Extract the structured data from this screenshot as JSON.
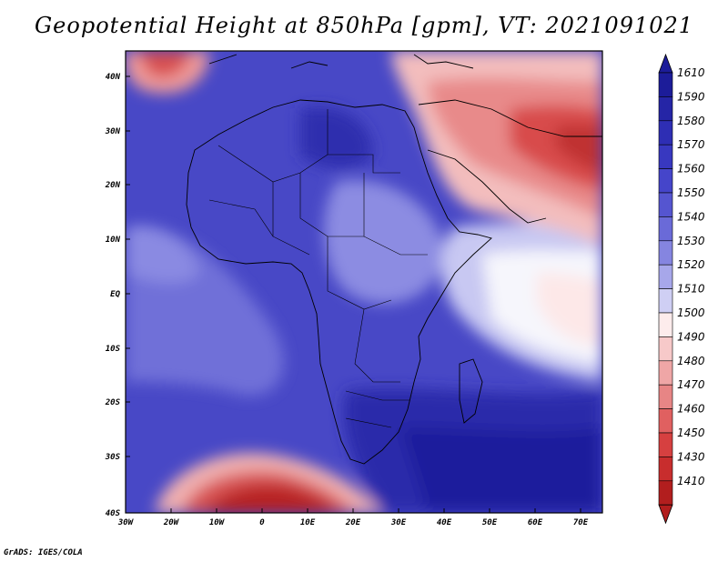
{
  "title": "Geopotential Height at 850hPa [gpm], VT: 2021091021",
  "credit": "GrADS: IGES/COLA",
  "map": {
    "lat_ticks": [
      "40N",
      "30N",
      "20N",
      "10N",
      "EQ",
      "10S",
      "20S",
      "30S",
      "40S"
    ],
    "lon_ticks": [
      "30W",
      "20W",
      "10W",
      "0",
      "10E",
      "20E",
      "30E",
      "40E",
      "50E",
      "60E",
      "70E"
    ]
  },
  "colorbar": {
    "levels": [
      "1610",
      "1590",
      "1580",
      "1570",
      "1560",
      "1550",
      "1540",
      "1530",
      "1520",
      "1510",
      "1500",
      "1490",
      "1480",
      "1470",
      "1460",
      "1450",
      "1430",
      "1410"
    ],
    "colors": [
      "#1c1c99",
      "#2525a6",
      "#2e2eb4",
      "#3838c0",
      "#4545ca",
      "#5555d0",
      "#6a6ad8",
      "#8585e0",
      "#a7a7ea",
      "#cfcff4",
      "#fdecec",
      "#f7c9c9",
      "#efa6a6",
      "#e78585",
      "#e06060",
      "#d64040",
      "#c82d2d",
      "#b21e1e"
    ]
  }
}
